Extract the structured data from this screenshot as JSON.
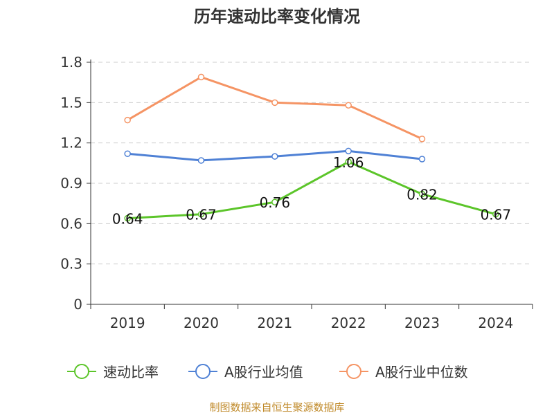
{
  "chart_data": {
    "type": "line",
    "title": "历年速动比率变化情况",
    "categories": [
      "2019",
      "2020",
      "2021",
      "2022",
      "2023",
      "2024"
    ],
    "ylim": [
      0,
      1.8
    ],
    "yticks": [
      "0",
      "0.3",
      "0.6",
      "0.9",
      "1.2",
      "1.5",
      "1.8"
    ],
    "grid": true,
    "legend_position": "bottom",
    "series": [
      {
        "name": "速动比率",
        "color": "#5cc52a",
        "values": [
          0.64,
          0.67,
          0.76,
          1.06,
          0.82,
          0.67
        ],
        "labels": [
          "0.64",
          "0.67",
          "0.76",
          "1.06",
          "0.82",
          "0.67"
        ]
      },
      {
        "name": "A股行业均值",
        "color": "#4f81d5",
        "values": [
          1.12,
          1.07,
          1.1,
          1.14,
          1.08,
          null
        ]
      },
      {
        "name": "A股行业中位数",
        "color": "#f59464",
        "values": [
          1.37,
          1.69,
          1.5,
          1.48,
          1.23,
          null
        ]
      }
    ]
  },
  "footer": {
    "source": "制图数据来自恒生聚源数据库"
  }
}
